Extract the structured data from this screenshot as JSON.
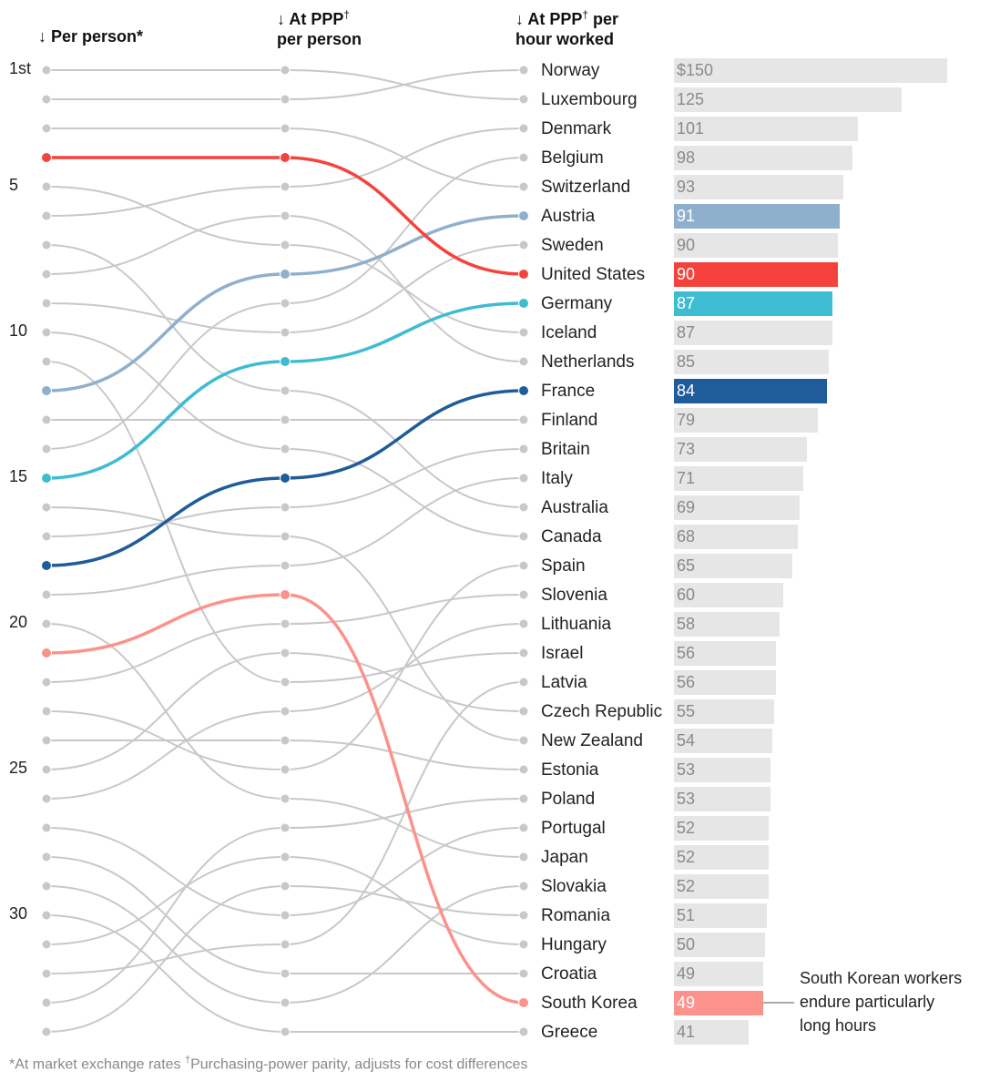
{
  "chart_data": {
    "type": "bump-and-bar",
    "headers": {
      "col1": "↓ Per person*",
      "col2_line1": "↓ At PPP",
      "col2_sup": "†",
      "col2_line2": "per person",
      "col3_line1": "↓ At PPP",
      "col3_sup": "†",
      "col3_suffix": " per",
      "col3_line2": "hour worked"
    },
    "rank_ticks": [
      {
        "rank": 1,
        "label": "1st"
      },
      {
        "rank": 5,
        "label": "5"
      },
      {
        "rank": 10,
        "label": "10"
      },
      {
        "rank": 15,
        "label": "15"
      },
      {
        "rank": 20,
        "label": "20"
      },
      {
        "rank": 25,
        "label": "25"
      },
      {
        "rank": 30,
        "label": "30"
      }
    ],
    "bar_max": 150,
    "currency_prefix": "$",
    "colors": {
      "gray": "#c8c8c8",
      "bar_bg": "#e6e6e6"
    },
    "countries": [
      {
        "name": "Norway",
        "value": 150,
        "r1": 2,
        "r2": 2
      },
      {
        "name": "Luxembourg",
        "value": 125,
        "r1": 1,
        "r2": 1
      },
      {
        "name": "Denmark",
        "value": 101,
        "r1": 6,
        "r2": 5
      },
      {
        "name": "Belgium",
        "value": 98,
        "r1": 14,
        "r2": 9
      },
      {
        "name": "Switzerland",
        "value": 93,
        "r1": 3,
        "r2": 3
      },
      {
        "name": "Austria",
        "value": 91,
        "r1": 12,
        "r2": 8,
        "color": "#8fb0cd"
      },
      {
        "name": "Sweden",
        "value": 90,
        "r1": 9,
        "r2": 10
      },
      {
        "name": "United States",
        "value": 90,
        "r1": 4,
        "r2": 4,
        "color": "#f6423c"
      },
      {
        "name": "Germany",
        "value": 87,
        "r1": 15,
        "r2": 11,
        "color": "#3ebcd2"
      },
      {
        "name": "Iceland",
        "value": 87,
        "r1": 5,
        "r2": 7
      },
      {
        "name": "Netherlands",
        "value": 85,
        "r1": 8,
        "r2": 6
      },
      {
        "name": "France",
        "value": 84,
        "r1": 18,
        "r2": 15,
        "color": "#1f5c99"
      },
      {
        "name": "Finland",
        "value": 79,
        "r1": 13,
        "r2": 13
      },
      {
        "name": "Britain",
        "value": 73,
        "r1": 17,
        "r2": 16
      },
      {
        "name": "Italy",
        "value": 71,
        "r1": 19,
        "r2": 18
      },
      {
        "name": "Australia",
        "value": 69,
        "r1": 7,
        "r2": 12
      },
      {
        "name": "Canada",
        "value": 68,
        "r1": 10,
        "r2": 14
      },
      {
        "name": "Spain",
        "value": 65,
        "r1": 23,
        "r2": 25
      },
      {
        "name": "Slovenia",
        "value": 60,
        "r1": 22,
        "r2": 20
      },
      {
        "name": "Lithuania",
        "value": 58,
        "r1": 26,
        "r2": 23
      },
      {
        "name": "Israel",
        "value": 56,
        "r1": 11,
        "r2": 22
      },
      {
        "name": "Latvia",
        "value": 56,
        "r1": 32,
        "r2": 31
      },
      {
        "name": "Czech Republic",
        "value": 55,
        "r1": 25,
        "r2": 21
      },
      {
        "name": "New Zealand",
        "value": 54,
        "r1": 16,
        "r2": 17
      },
      {
        "name": "Estonia",
        "value": 53,
        "r1": 24,
        "r2": 24
      },
      {
        "name": "Poland",
        "value": 53,
        "r1": 33,
        "r2": 27
      },
      {
        "name": "Portugal",
        "value": 52,
        "r1": 27,
        "r2": 30
      },
      {
        "name": "Japan",
        "value": 52,
        "r1": 20,
        "r2": 26
      },
      {
        "name": "Slovakia",
        "value": 52,
        "r1": 29,
        "r2": 33
      },
      {
        "name": "Romania",
        "value": 51,
        "r1": 34,
        "r2": 29
      },
      {
        "name": "Hungary",
        "value": 50,
        "r1": 31,
        "r2": 28
      },
      {
        "name": "Croatia",
        "value": 49,
        "r1": 28,
        "r2": 32
      },
      {
        "name": "South Korea",
        "value": 49,
        "r1": 21,
        "r2": 19,
        "color": "#fb928b"
      },
      {
        "name": "Greece",
        "value": 41,
        "r1": 30,
        "r2": 34
      }
    ],
    "annotation": {
      "line1": "South Korean workers",
      "line2": "endure particularly",
      "line3": "long hours",
      "target": "South Korea"
    },
    "footnote": {
      "part1": "*At market exchange rates ",
      "sup": "†",
      "part2": "Purchasing-power parity, adjusts for cost differences"
    }
  }
}
